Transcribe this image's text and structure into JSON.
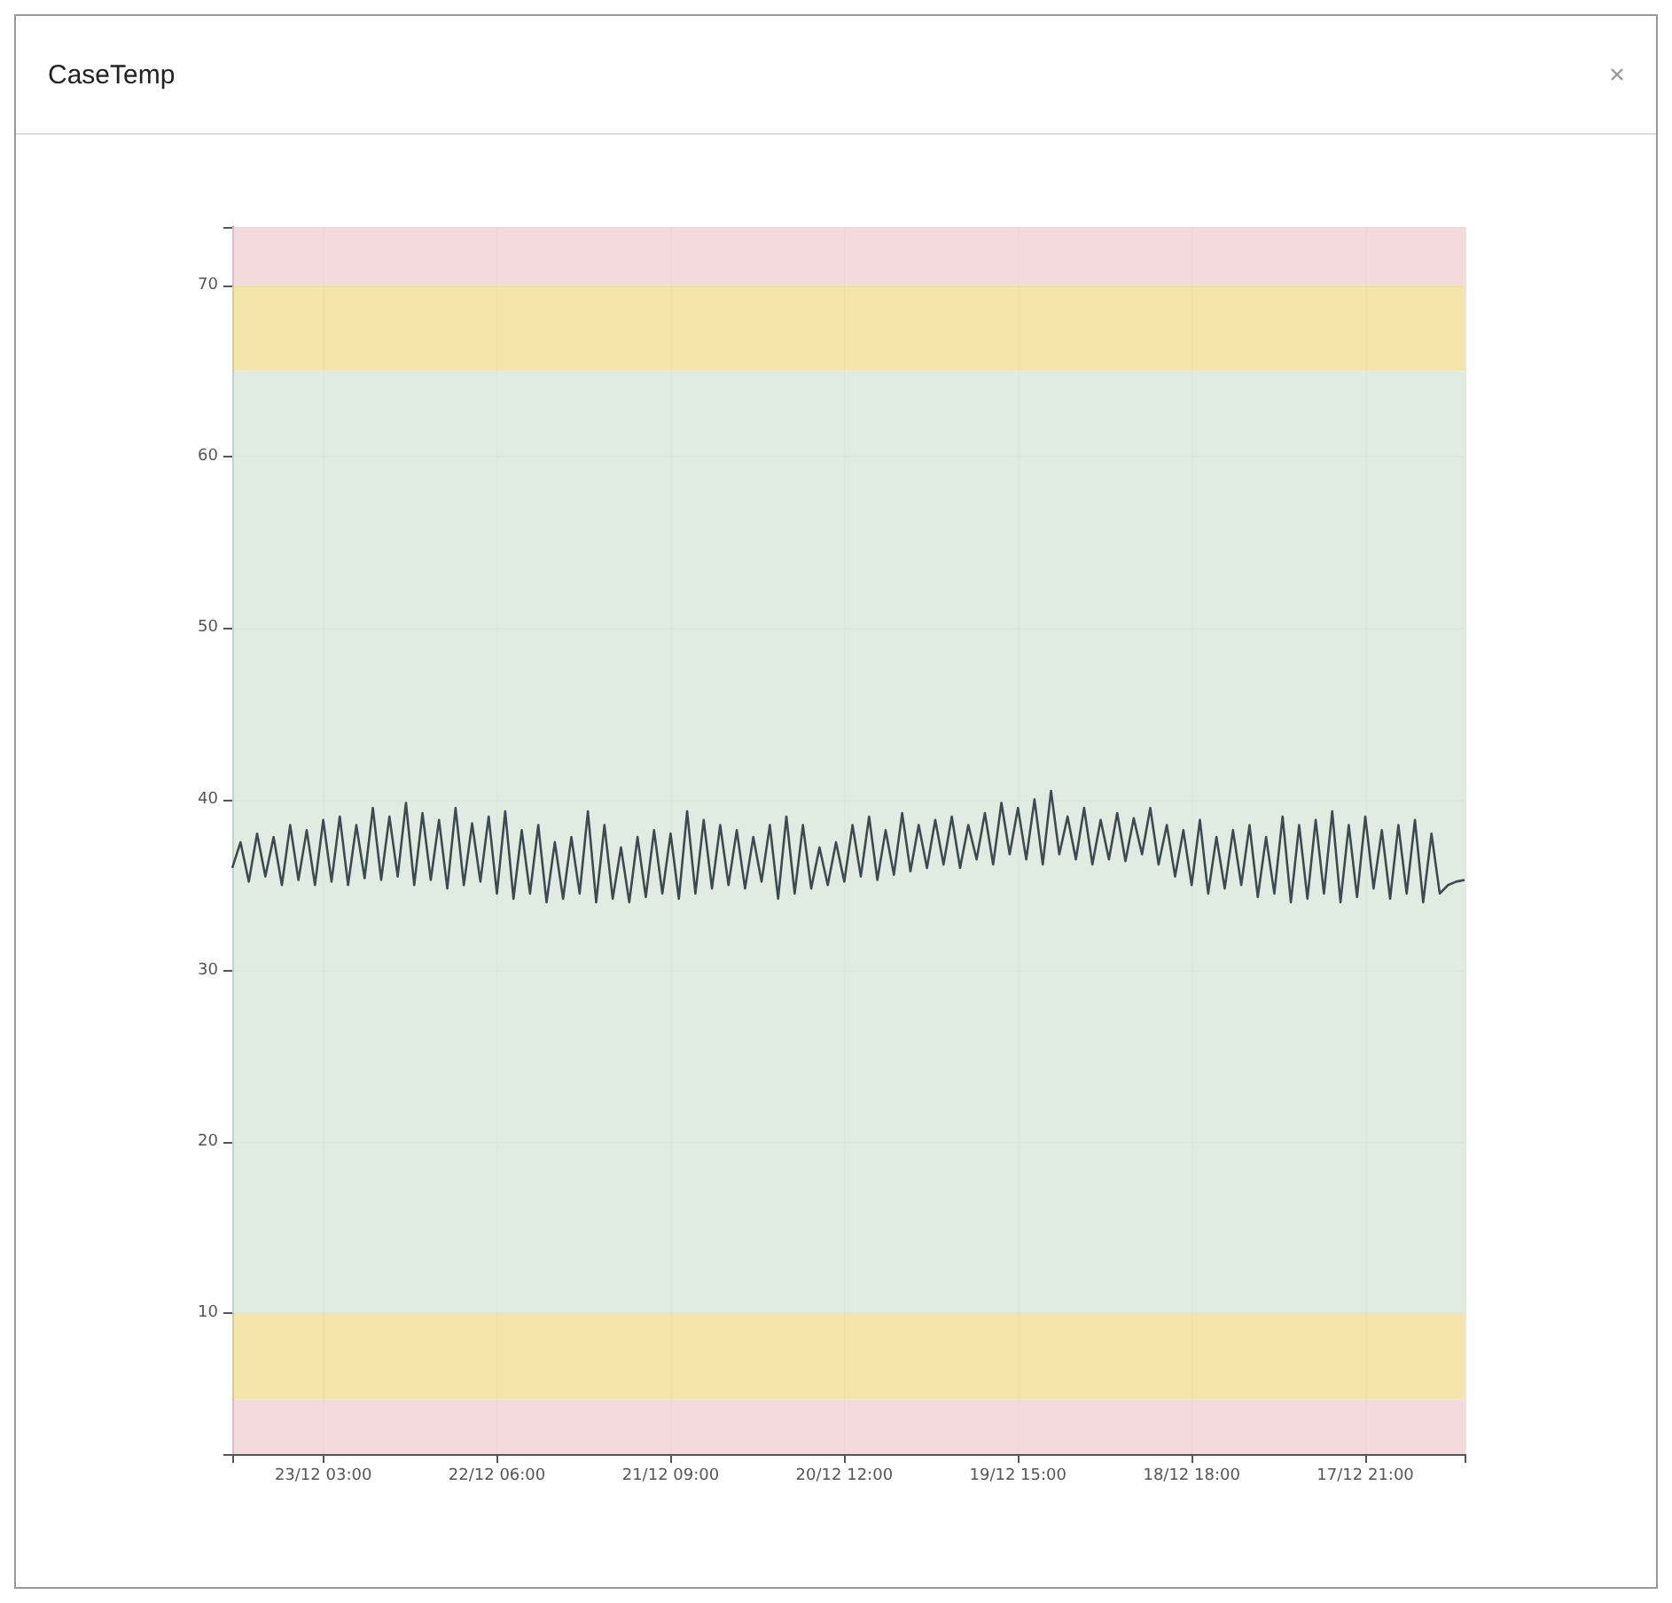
{
  "chart_data": {
    "type": "line",
    "title": "CaseTemp",
    "x": [
      "--12-23T14:00",
      "--12-23T13:00",
      "--12-23T12:00",
      "--12-23T11:00",
      "--12-23T10:00",
      "--12-23T09:00",
      "--12-23T08:00",
      "--12-23T07:00",
      "--12-23T06:00",
      "--12-23T05:00",
      "--12-23T04:00",
      "--12-23T03:00",
      "--12-23T02:00",
      "--12-23T01:00",
      "--12-23T00:00",
      "--12-22T23:00",
      "--12-22T22:00",
      "--12-22T21:00",
      "--12-22T20:00",
      "--12-22T19:00",
      "--12-22T18:00",
      "--12-22T17:00",
      "--12-22T16:00",
      "--12-22T15:00",
      "--12-22T14:00",
      "--12-22T13:00",
      "--12-22T12:00",
      "--12-22T11:00",
      "--12-22T10:00",
      "--12-22T09:00",
      "--12-22T08:00",
      "--12-22T07:00",
      "--12-22T06:00",
      "--12-22T05:00",
      "--12-22T04:00",
      "--12-22T03:00",
      "--12-22T02:00",
      "--12-22T01:00",
      "--12-22T00:00",
      "--12-21T23:00",
      "--12-21T22:00",
      "--12-21T21:00",
      "--12-21T20:00",
      "--12-21T19:00",
      "--12-21T18:00",
      "--12-21T17:00",
      "--12-21T16:00",
      "--12-21T15:00",
      "--12-21T14:00",
      "--12-21T13:00",
      "--12-21T12:00",
      "--12-21T11:00",
      "--12-21T10:00",
      "--12-21T09:00",
      "--12-21T08:00",
      "--12-21T07:00",
      "--12-21T06:00",
      "--12-21T05:00",
      "--12-21T04:00",
      "--12-21T03:00",
      "--12-21T02:00",
      "--12-21T01:00",
      "--12-21T00:00",
      "--12-20T23:00",
      "--12-20T22:00",
      "--12-20T21:00",
      "--12-20T20:00",
      "--12-20T19:00",
      "--12-20T18:00",
      "--12-20T17:00",
      "--12-20T16:00",
      "--12-20T15:00",
      "--12-20T14:00",
      "--12-20T13:00",
      "--12-20T12:00",
      "--12-20T11:00",
      "--12-20T10:00",
      "--12-20T09:00",
      "--12-20T08:00",
      "--12-20T07:00",
      "--12-20T06:00",
      "--12-20T05:00",
      "--12-20T04:00",
      "--12-20T03:00",
      "--12-20T02:00",
      "--12-20T01:00",
      "--12-20T00:00",
      "--12-19T23:00",
      "--12-19T22:00",
      "--12-19T21:00",
      "--12-19T20:00",
      "--12-19T19:00",
      "--12-19T18:00",
      "--12-19T17:00",
      "--12-19T16:00",
      "--12-19T15:00",
      "--12-19T14:00",
      "--12-19T13:00",
      "--12-19T12:00",
      "--12-19T11:00",
      "--12-19T10:00",
      "--12-19T09:00",
      "--12-19T08:00",
      "--12-19T07:00",
      "--12-19T06:00",
      "--12-19T05:00",
      "--12-19T04:00",
      "--12-19T03:00",
      "--12-19T02:00",
      "--12-19T01:00",
      "--12-19T00:00",
      "--12-18T23:00",
      "--12-18T22:00",
      "--12-18T21:00",
      "--12-18T20:00",
      "--12-18T19:00",
      "--12-18T18:00",
      "--12-18T17:00",
      "--12-18T16:00",
      "--12-18T15:00",
      "--12-18T14:00",
      "--12-18T13:00",
      "--12-18T12:00",
      "--12-18T11:00",
      "--12-18T10:00",
      "--12-18T09:00",
      "--12-18T08:00",
      "--12-18T07:00",
      "--12-18T06:00",
      "--12-18T05:00",
      "--12-18T04:00",
      "--12-18T03:00",
      "--12-18T02:00",
      "--12-18T01:00",
      "--12-18T00:00",
      "--12-17T23:00",
      "--12-17T22:00",
      "--12-17T21:00",
      "--12-17T20:00",
      "--12-17T19:00",
      "--12-17T18:00",
      "--12-17T17:00",
      "--12-17T16:00",
      "--12-17T15:00",
      "--12-17T14:00",
      "--12-17T13:00",
      "--12-17T12:00",
      "--12-17T11:00",
      "--12-17T10:00",
      "--12-17T09:00"
    ],
    "series": [
      {
        "color": "#3d4a4f",
        "values": [
          36,
          37.5,
          35.2,
          38,
          35.5,
          37.8,
          35,
          38.5,
          35.3,
          38.2,
          35,
          38.8,
          35.2,
          39,
          35,
          38.5,
          35.4,
          39.5,
          35.3,
          39,
          35.5,
          39.8,
          35,
          39.2,
          35.3,
          38.8,
          34.8,
          39.5,
          35,
          38.6,
          35.2,
          39,
          34.5,
          39.3,
          34.2,
          38.2,
          34.5,
          38.5,
          34,
          37.5,
          34.2,
          37.8,
          34.5,
          39.3,
          34,
          38.5,
          34.2,
          37.2,
          34,
          37.8,
          34.3,
          38.2,
          34.5,
          38,
          34.2,
          39.3,
          34.5,
          38.8,
          34.8,
          38.5,
          35,
          38.2,
          34.8,
          37.8,
          35.2,
          38.5,
          34.2,
          39,
          34.5,
          38.5,
          34.8,
          37.2,
          35,
          37.5,
          35.2,
          38.5,
          35.5,
          39,
          35.3,
          38.2,
          35.6,
          39.2,
          35.8,
          38.5,
          36,
          38.8,
          36.2,
          39,
          36,
          38.5,
          36.5,
          39.2,
          36.2,
          39.8,
          36.8,
          39.5,
          36.5,
          40,
          36.2,
          40.5,
          36.8,
          39,
          36.5,
          39.5,
          36.2,
          38.8,
          36.5,
          39.2,
          36.4,
          38.9,
          36.8,
          39.5,
          36.2,
          38.5,
          35.5,
          38.2,
          35,
          38.8,
          34.5,
          37.8,
          34.8,
          38.2,
          35,
          38.5,
          34.3,
          37.8,
          34.5,
          39,
          34,
          38.5,
          34.2,
          38.8,
          34.5,
          39.3,
          34,
          38.5,
          34.3,
          39,
          34.8,
          38.2,
          34.2,
          38.5,
          34.5,
          38.8,
          34,
          38,
          34.5,
          35,
          35.2,
          35.3
        ]
      }
    ],
    "xlim": [
      "--12-23T14:00",
      "--12-17T09:00"
    ],
    "xticks": [
      {
        "value": "--12-23T03:00",
        "label": "23/12 03:00"
      },
      {
        "value": "--12-22T06:00",
        "label": "22/12 06:00"
      },
      {
        "value": "--12-21T09:00",
        "label": "21/12 09:00"
      },
      {
        "value": "--12-20T12:00",
        "label": "20/12 12:00"
      },
      {
        "value": "--12-19T15:00",
        "label": "19/12 15:00"
      },
      {
        "value": "--12-18T18:00",
        "label": "18/12 18:00"
      },
      {
        "value": "--12-17T21:00",
        "label": "17/12 21:00"
      }
    ],
    "ylim": [
      1.8,
      73.4
    ],
    "yticks": [
      10,
      20,
      30,
      40,
      50,
      60,
      70
    ],
    "bands": [
      {
        "axis": "y",
        "from": 70,
        "to": 73.4,
        "color": "#f2d3d6"
      },
      {
        "axis": "y",
        "from": 65,
        "to": 70,
        "color": "#f5e19b"
      },
      {
        "axis": "y",
        "from": 10,
        "to": 65,
        "color": "#dbe9dd"
      },
      {
        "axis": "y",
        "from": 5,
        "to": 10,
        "color": "#f5e19b"
      },
      {
        "axis": "y",
        "from": 1.8,
        "to": 5,
        "color": "#f2d3d6"
      }
    ],
    "grid": true,
    "marker": "none",
    "line_style": "solid"
  }
}
